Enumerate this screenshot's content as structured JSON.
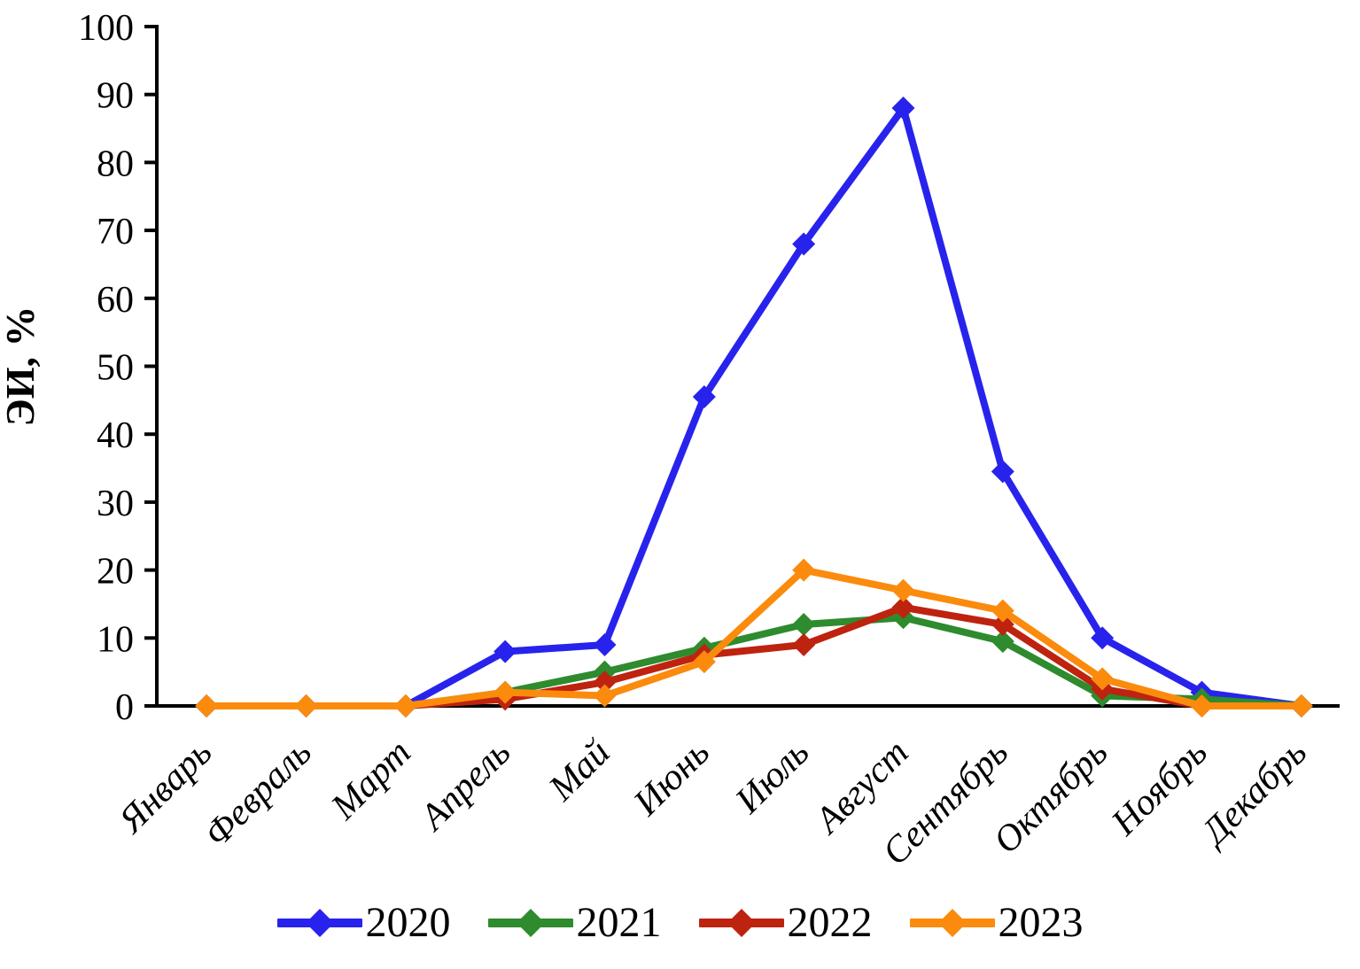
{
  "chart_data": {
    "type": "line",
    "marker": "diamond",
    "ylabel": "ЭИ, %",
    "xlabel": "",
    "ylim": [
      0,
      100
    ],
    "ytick_step": 10,
    "grid": false,
    "legend_position": "bottom",
    "categories": [
      "Январь",
      "Февраль",
      "Март",
      "Апрель",
      "Май",
      "Июнь",
      "Июль",
      "Август",
      "Сентябрь",
      "Октябрь",
      "Ноябрь",
      "Декабрь"
    ],
    "series": [
      {
        "name": "2020",
        "color": "#2823EC",
        "values": [
          0,
          0,
          0,
          8,
          9,
          45.5,
          68,
          88,
          34.5,
          10,
          2,
          0
        ]
      },
      {
        "name": "2021",
        "color": "#2E8B2E",
        "values": [
          0,
          0,
          0,
          2,
          5,
          8.5,
          12,
          13,
          9.5,
          1.5,
          1,
          0
        ]
      },
      {
        "name": "2022",
        "color": "#BE2310",
        "values": [
          0,
          0,
          0,
          1,
          3.5,
          7.5,
          9,
          14.5,
          12,
          2.5,
          0,
          0
        ]
      },
      {
        "name": "2023",
        "color": "#FB8B0D",
        "values": [
          0,
          0,
          0,
          2,
          1.5,
          6.5,
          20,
          17,
          14,
          4,
          0,
          0
        ]
      }
    ],
    "axis_color": "#000000"
  }
}
